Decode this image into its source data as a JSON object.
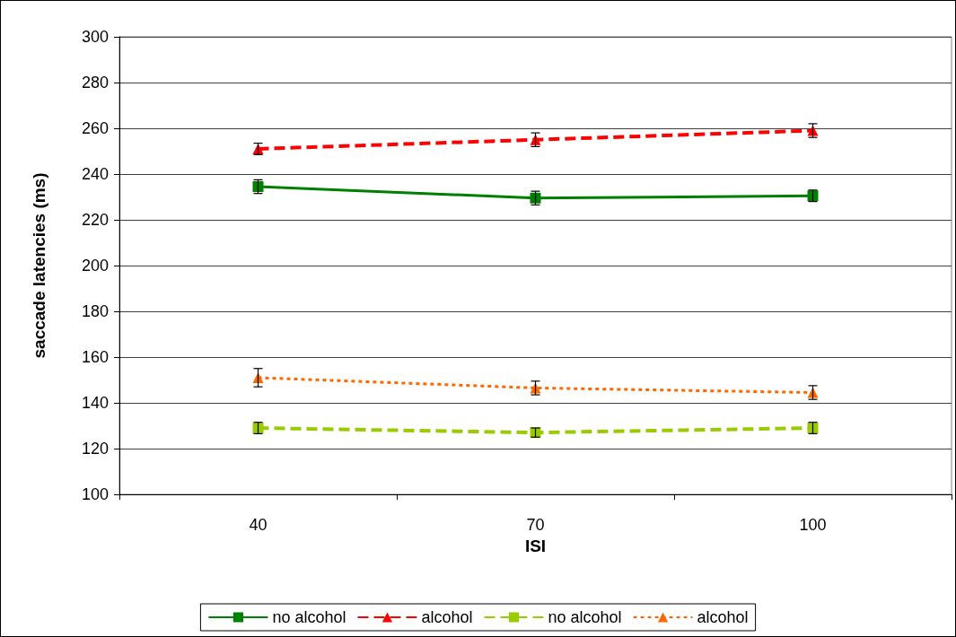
{
  "chart_data": {
    "type": "line",
    "xlabel": "ISI",
    "ylabel": "saccade latencies (ms)",
    "categories": [
      "40",
      "70",
      "100"
    ],
    "series": [
      {
        "name": "no alcohol",
        "color": "#008000",
        "values": [
          234.5,
          229.5,
          230.5
        ],
        "errors": [
          3,
          3,
          2.5
        ],
        "marker": "square",
        "line_style": "solid"
      },
      {
        "name": "alcohol",
        "color": "#ff0000",
        "values": [
          251,
          255,
          259
        ],
        "errors": [
          2.5,
          3,
          3
        ],
        "marker": "triangle",
        "line_style": "dashed"
      },
      {
        "name": "no alcohol",
        "color": "#99cc00",
        "values": [
          129,
          127,
          129
        ],
        "errors": [
          2.5,
          2,
          2.5
        ],
        "marker": "square",
        "line_style": "dashed"
      },
      {
        "name": "alcohol",
        "color": "#ff6600",
        "values": [
          151,
          146.5,
          144.5
        ],
        "errors": [
          4,
          3,
          3
        ],
        "marker": "triangle",
        "line_style": "dotted"
      }
    ],
    "ylim": [
      100,
      300
    ],
    "yticks": [
      100,
      120,
      140,
      160,
      180,
      200,
      220,
      240,
      260,
      280,
      300
    ],
    "grid": "y",
    "legend": "bottom"
  }
}
